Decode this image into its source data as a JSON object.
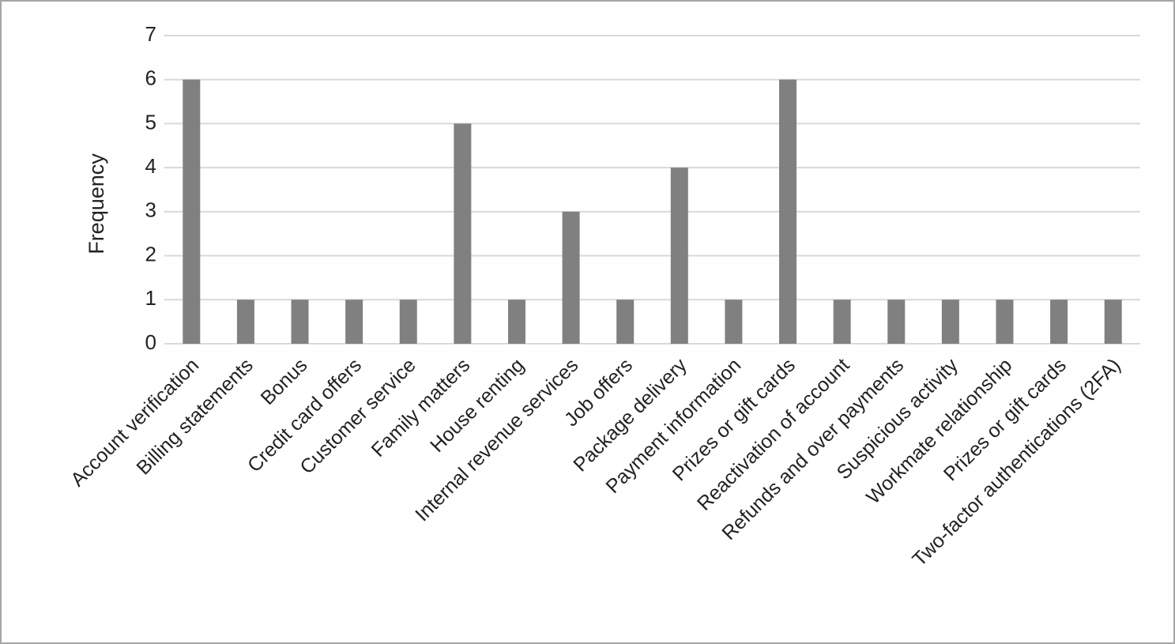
{
  "chart_data": {
    "type": "bar",
    "y_label": "Frequency",
    "categories": [
      "Account verification",
      "Billing statements",
      "Bonus",
      "Credit card offers",
      "Customer service",
      "Family matters",
      "House renting",
      "Internal revenue services",
      "Job offers",
      "Package delivery",
      "Payment information",
      "Prizes or gift cards",
      "Reactivation of account",
      "Refunds and over payments",
      "Suspicious activity",
      "Workmate relationship",
      "Prizes or gift cards",
      "Two-factor authentications (2FA)"
    ],
    "values": [
      6,
      1,
      1,
      1,
      1,
      5,
      1,
      3,
      1,
      4,
      1,
      6,
      1,
      1,
      1,
      1,
      1,
      1
    ],
    "color": "#808080",
    "ylim": [
      0,
      7
    ],
    "yticks": [
      0,
      1,
      2,
      3,
      4,
      5,
      6,
      7
    ],
    "grid": true
  }
}
